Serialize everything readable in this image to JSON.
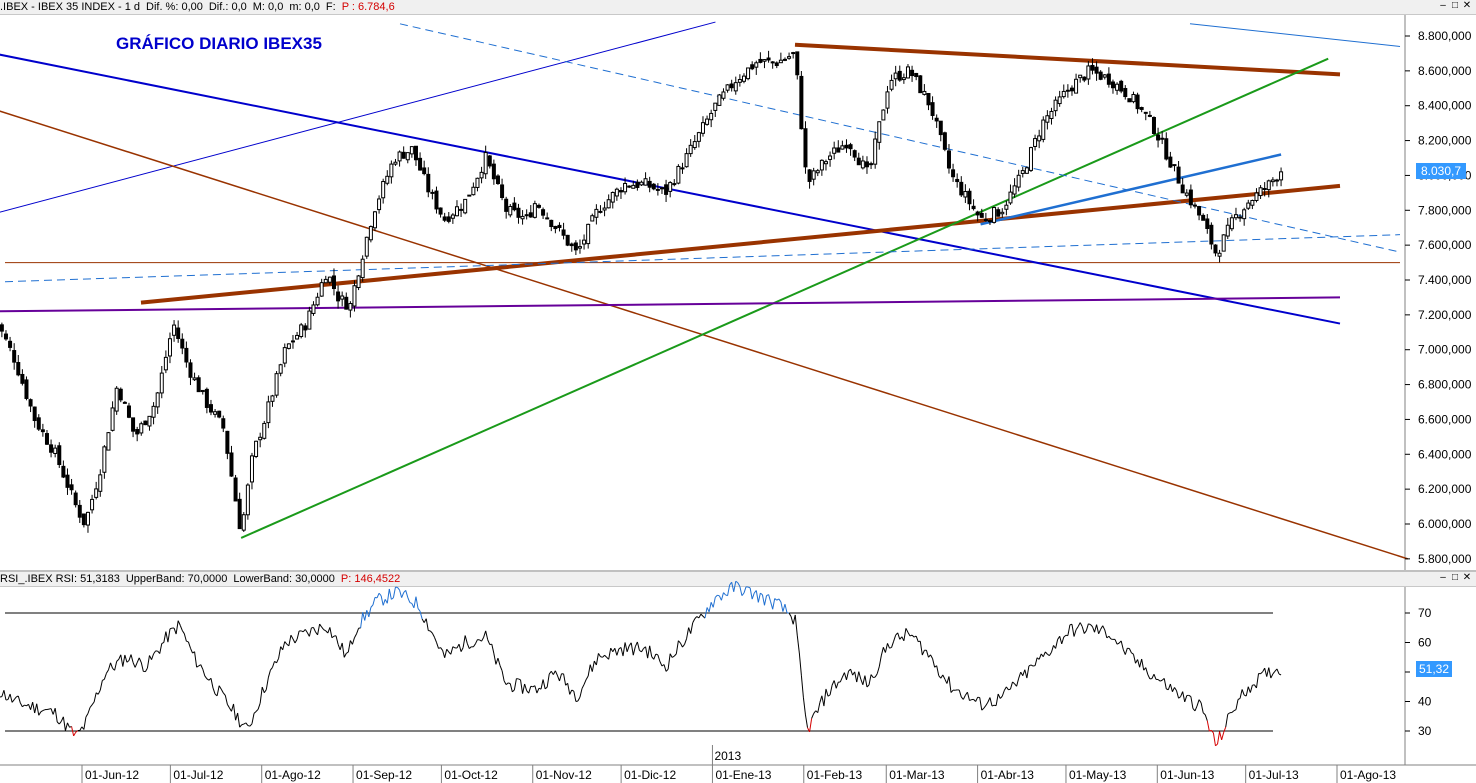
{
  "price_pane": {
    "header": {
      "symbol": ".IBEX - IBEX 35 INDEX - 1 d",
      "diff_pct": "Dif. %: 0,00",
      "diff": "Dif.: 0,0",
      "max": "M: 0,0",
      "min": "m: 0,0",
      "f": "F:",
      "pointer": "P : 6.784,6"
    },
    "title": "GRÁFICO DIARIO IBEX35",
    "last_value": "8.030,7"
  },
  "rsi_pane": {
    "header": {
      "name": "RSI_.IBEX RSI: 51,3183",
      "upper": "UpperBand: 70,0000",
      "lower": "LowerBand: 30,0000",
      "pointer": "P: 146,4522"
    },
    "last_value": "51,32"
  },
  "x_axis": {
    "labels": [
      "01-Jun-12",
      "01-Jul-12",
      "01-Ago-12",
      "01-Sep-12",
      "01-Oct-12",
      "01-Nov-12",
      "01-Dic-12",
      "01-Ene-13",
      "01-Feb-13",
      "01-Mar-13",
      "01-Abr-13",
      "01-May-13",
      "01-Jun-13",
      "01-Jul-13",
      "01-Ago-13"
    ],
    "year_marker": "2013"
  },
  "window_buttons": [
    "minimize-icon",
    "restore-icon",
    "close-icon"
  ],
  "colors": {
    "background": "#ffffff",
    "header_bg": "#f0f0f0",
    "title": "#0000cc",
    "pointer_text": "#d40000",
    "candle": "#000000",
    "trend_blue": "#0000cc",
    "trend_lightblue": "#1f6fd1",
    "trend_brown": "#993300",
    "trend_green": "#1a9a1a",
    "trend_purple": "#660099",
    "rsi_line": "#000000",
    "rsi_overbought": "#1f6fd1",
    "rsi_oversold": "#d40000",
    "last_value_bg": "#3399ff"
  },
  "chart_data": [
    {
      "type": "candlestick",
      "title": "GRÁFICO DIARIO IBEX35",
      "x": [
        "01-Jun-12",
        "01-Jul-12",
        "01-Ago-12",
        "01-Sep-12",
        "01-Oct-12",
        "01-Nov-12",
        "01-Dic-12",
        "01-Ene-13",
        "01-Feb-13",
        "01-Mar-13",
        "01-Abr-13",
        "01-May-13",
        "01-Jun-13",
        "01-Jul-13",
        "01-Ago-13"
      ],
      "y_ticks": [
        5800,
        6000,
        6200,
        6400,
        6600,
        6800,
        7000,
        7200,
        7400,
        7600,
        7800,
        8000,
        8200,
        8400,
        8600,
        8800
      ],
      "ylim": [
        5700,
        8900
      ],
      "close_path": [
        [
          "01-May-12",
          7200
        ],
        [
          "08-May-12",
          6950
        ],
        [
          "15-May-12",
          6600
        ],
        [
          "22-May-12",
          6400
        ],
        [
          "29-May-12",
          6100
        ],
        [
          "01-Jun-12",
          6000
        ],
        [
          "06-Jun-12",
          6300
        ],
        [
          "12-Jun-12",
          6800
        ],
        [
          "18-Jun-12",
          6500
        ],
        [
          "25-Jun-12",
          6700
        ],
        [
          "01-Jul-12",
          7150
        ],
        [
          "06-Jul-12",
          6900
        ],
        [
          "12-Jul-12",
          6700
        ],
        [
          "18-Jul-12",
          6550
        ],
        [
          "24-Jul-12",
          5950
        ],
        [
          "28-Jul-12",
          6400
        ],
        [
          "01-Ago-12",
          6600
        ],
        [
          "08-Ago-12",
          7000
        ],
        [
          "15-Ago-12",
          7150
        ],
        [
          "22-Ago-12",
          7450
        ],
        [
          "26-Ago-12",
          7300
        ],
        [
          "30-Ago-12",
          7250
        ],
        [
          "01-Sep-12",
          7400
        ],
        [
          "07-Sep-12",
          7800
        ],
        [
          "14-Sep-12",
          8100
        ],
        [
          "20-Sep-12",
          8150
        ],
        [
          "26-Sep-12",
          7900
        ],
        [
          "01-Oct-12",
          7750
        ],
        [
          "08-Oct-12",
          7850
        ],
        [
          "15-Oct-12",
          8100
        ],
        [
          "22-Oct-12",
          7800
        ],
        [
          "29-Oct-12",
          7750
        ],
        [
          "01-Nov-12",
          7850
        ],
        [
          "08-Nov-12",
          7700
        ],
        [
          "15-Nov-12",
          7550
        ],
        [
          "22-Nov-12",
          7800
        ],
        [
          "01-Dic-12",
          7950
        ],
        [
          "08-Dic-12",
          7950
        ],
        [
          "15-Dic-12",
          7900
        ],
        [
          "22-Dic-12",
          8100
        ],
        [
          "01-Ene-13",
          8400
        ],
        [
          "08-Ene-13",
          8550
        ],
        [
          "15-Ene-13",
          8650
        ],
        [
          "22-Ene-13",
          8650
        ],
        [
          "28-Ene-13",
          8700
        ],
        [
          "01-Feb-13",
          7950
        ],
        [
          "08-Feb-13",
          8100
        ],
        [
          "15-Feb-13",
          8200
        ],
        [
          "22-Feb-13",
          8000
        ],
        [
          "01-Mar-13",
          8550
        ],
        [
          "08-Mar-13",
          8600
        ],
        [
          "15-Mar-13",
          8400
        ],
        [
          "22-Mar-13",
          8000
        ],
        [
          "01-Abr-13",
          7750
        ],
        [
          "08-Abr-13",
          7800
        ],
        [
          "15-Abr-13",
          8000
        ],
        [
          "22-Abr-13",
          8300
        ],
        [
          "01-May-13",
          8500
        ],
        [
          "08-May-13",
          8600
        ],
        [
          "15-May-13",
          8550
        ],
        [
          "22-May-13",
          8450
        ],
        [
          "29-May-13",
          8300
        ],
        [
          "01-Jun-13",
          8200
        ],
        [
          "08-Jun-13",
          7950
        ],
        [
          "15-Jun-13",
          7750
        ],
        [
          "20-Jun-13",
          7550
        ],
        [
          "26-Jun-13",
          7750
        ],
        [
          "01-Jul-13",
          7850
        ],
        [
          "08-Jul-13",
          7950
        ],
        [
          "12-Jul-13",
          8030.7
        ]
      ],
      "last_value": 8030.7,
      "horizontal_lines": [
        {
          "y": 7500,
          "color": "#993300"
        }
      ],
      "trendlines": [
        {
          "color": "#0000cc",
          "points": [
            [
              "01-May-12",
              8700
            ],
            [
              "01-Ago-13",
              7150
            ]
          ]
        },
        {
          "color": "#0000cc",
          "points": [
            [
              "01-May-12",
              7780
            ],
            [
              "01-Ene-13",
              8880
            ]
          ]
        },
        {
          "color": "#993300",
          "points": [
            [
              "01-May-12",
              8380
            ],
            [
              "24-Ago-13",
              5800
            ]
          ]
        },
        {
          "color": "#993300",
          "points": [
            [
              "20-Jun-12",
              7270
            ],
            [
              "01-Ago-13",
              7940
            ]
          ]
        },
        {
          "color": "#993300",
          "points": [
            [
              "28-Ene-13",
              8750
            ],
            [
              "01-Ago-13",
              8580
            ]
          ]
        },
        {
          "color": "#1a9a1a",
          "points": [
            [
              "24-Jul-12",
              5920
            ],
            [
              "28-Jul-13",
              8670
            ]
          ]
        },
        {
          "color": "#660099",
          "points": [
            [
              "01-May-12",
              7220
            ],
            [
              "01-Ago-13",
              7300
            ]
          ]
        },
        {
          "color": "#1f6fd1",
          "points": [
            [
              "01-Abr-13",
              7720
            ],
            [
              "12-Jul-13",
              8120
            ]
          ]
        }
      ]
    },
    {
      "type": "line",
      "title": "RSI_.IBEX RSI",
      "y_ticks": [
        30,
        40,
        50,
        60,
        70
      ],
      "ylim": [
        20,
        85
      ],
      "upper_band": 70,
      "lower_band": 30,
      "series": [
        {
          "name": "RSI",
          "values": [
            [
              "01-May-12",
              45
            ],
            [
              "08-May-12",
              40
            ],
            [
              "15-May-12",
              38
            ],
            [
              "22-May-12",
              36
            ],
            [
              "29-May-12",
              28
            ],
            [
              "01-Jun-12",
              32
            ],
            [
              "08-Jun-12",
              50
            ],
            [
              "15-Jun-12",
              55
            ],
            [
              "22-Jun-12",
              52
            ],
            [
              "29-Jun-12",
              62
            ],
            [
              "03-Jul-12",
              66
            ],
            [
              "08-Jul-12",
              55
            ],
            [
              "15-Jul-12",
              45
            ],
            [
              "22-Jul-12",
              36
            ],
            [
              "26-Jul-12",
              30
            ],
            [
              "01-Ago-12",
              45
            ],
            [
              "08-Ago-12",
              60
            ],
            [
              "15-Ago-12",
              63
            ],
            [
              "22-Ago-12",
              66
            ],
            [
              "29-Ago-12",
              55
            ],
            [
              "01-Sep-12",
              65
            ],
            [
              "08-Sep-12",
              74
            ],
            [
              "15-Sep-12",
              77
            ],
            [
              "22-Sep-12",
              73
            ],
            [
              "01-Oct-12",
              55
            ],
            [
              "08-Oct-12",
              60
            ],
            [
              "15-Oct-12",
              62
            ],
            [
              "22-Oct-12",
              46
            ],
            [
              "01-Nov-12",
              44
            ],
            [
              "08-Nov-12",
              50
            ],
            [
              "15-Nov-12",
              42
            ],
            [
              "22-Nov-12",
              55
            ],
            [
              "01-Dic-12",
              58
            ],
            [
              "08-Dic-12",
              58
            ],
            [
              "15-Dic-12",
              52
            ],
            [
              "22-Dic-12",
              62
            ],
            [
              "01-Ene-13",
              75
            ],
            [
              "08-Ene-13",
              79
            ],
            [
              "15-Ene-13",
              76
            ],
            [
              "22-Ene-13",
              73
            ],
            [
              "28-Ene-13",
              68
            ],
            [
              "01-Feb-13",
              30
            ],
            [
              "08-Feb-13",
              43
            ],
            [
              "15-Feb-13",
              50
            ],
            [
              "22-Feb-13",
              46
            ],
            [
              "01-Mar-13",
              60
            ],
            [
              "08-Mar-13",
              63
            ],
            [
              "15-Mar-13",
              55
            ],
            [
              "22-Mar-13",
              45
            ],
            [
              "01-Abr-13",
              39
            ],
            [
              "08-Abr-13",
              41
            ],
            [
              "15-Abr-13",
              48
            ],
            [
              "22-Abr-13",
              55
            ],
            [
              "01-May-13",
              64
            ],
            [
              "08-May-13",
              65
            ],
            [
              "15-May-13",
              63
            ],
            [
              "22-May-13",
              55
            ],
            [
              "01-Jun-13",
              47
            ],
            [
              "08-Jun-13",
              42
            ],
            [
              "15-Jun-13",
              38
            ],
            [
              "20-Jun-13",
              25
            ],
            [
              "26-Jun-13",
              38
            ],
            [
              "01-Jul-13",
              45
            ],
            [
              "08-Jul-13",
              50
            ],
            [
              "12-Jul-13",
              51.32
            ]
          ]
        }
      ],
      "last_value": 51.32
    }
  ]
}
